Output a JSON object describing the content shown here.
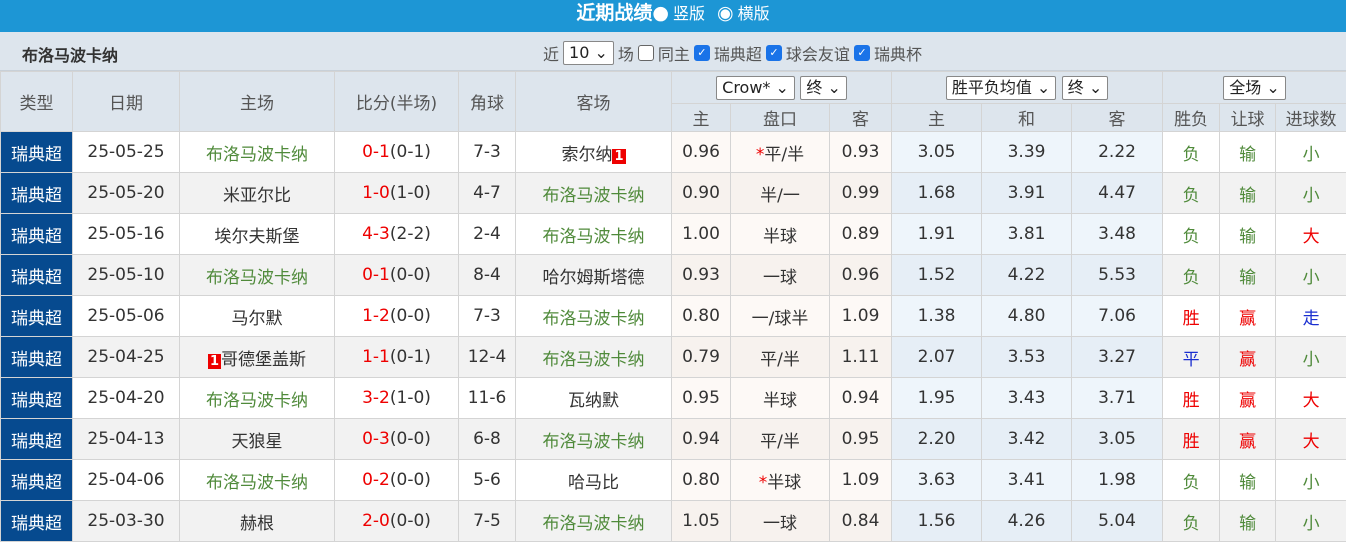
{
  "header": {
    "title": "近期战绩",
    "opt_vertical": "竖版",
    "opt_horizontal": "横版"
  },
  "filter": {
    "team": "布洛马波卡纳",
    "near": "近",
    "count": "10",
    "games": "场",
    "same_home": "同主",
    "leagues": [
      "瑞典超",
      "球会友谊",
      "瑞典杯"
    ]
  },
  "columns": {
    "type": "类型",
    "date": "日期",
    "home": "主场",
    "score": "比分(半场)",
    "corner": "角球",
    "away": "客场",
    "company": "Crow*",
    "handicap_stage": "终",
    "euro_select": "胜平负均值",
    "euro_stage": "终",
    "period": "全场",
    "sub": [
      "主",
      "盘口",
      "客",
      "主",
      "和",
      "客",
      "胜负",
      "让球",
      "进球数"
    ]
  },
  "colors": {
    "team_highlight": "#4f8a3a",
    "league_bg": "#064a8f",
    "win": "#e00000",
    "loss": "#4f8a3a",
    "draw": "#1a2fd0"
  },
  "rows": [
    {
      "league": "瑞典超",
      "date": "25-05-25",
      "home": "布洛马波卡纳",
      "home_card": "",
      "score": "0-1",
      "half": "(0-1)",
      "corner": "7-3",
      "away": "索尔纳",
      "away_card": "1",
      "o1": "0.96",
      "hc_star": "*",
      "hc": "平/半",
      "o2": "0.93",
      "e1": "3.05",
      "e2": "3.39",
      "e3": "2.22",
      "r": "负",
      "rh": "输",
      "ou": "小",
      "hl": "home"
    },
    {
      "league": "瑞典超",
      "date": "25-05-20",
      "home": "米亚尔比",
      "home_card": "",
      "score": "1-0",
      "half": "(1-0)",
      "corner": "4-7",
      "away": "布洛马波卡纳",
      "away_card": "",
      "o1": "0.90",
      "hc_star": "",
      "hc": "半/一",
      "o2": "0.99",
      "e1": "1.68",
      "e2": "3.91",
      "e3": "4.47",
      "r": "负",
      "rh": "输",
      "ou": "小",
      "hl": "away"
    },
    {
      "league": "瑞典超",
      "date": "25-05-16",
      "home": "埃尔夫斯堡",
      "home_card": "",
      "score": "4-3",
      "half": "(2-2)",
      "corner": "2-4",
      "away": "布洛马波卡纳",
      "away_card": "",
      "o1": "1.00",
      "hc_star": "",
      "hc": "半球",
      "o2": "0.89",
      "e1": "1.91",
      "e2": "3.81",
      "e3": "3.48",
      "r": "负",
      "rh": "输",
      "ou": "大",
      "hl": "away"
    },
    {
      "league": "瑞典超",
      "date": "25-05-10",
      "home": "布洛马波卡纳",
      "home_card": "",
      "score": "0-1",
      "half": "(0-0)",
      "corner": "8-4",
      "away": "哈尔姆斯塔德",
      "away_card": "",
      "o1": "0.93",
      "hc_star": "",
      "hc": "一球",
      "o2": "0.96",
      "e1": "1.52",
      "e2": "4.22",
      "e3": "5.53",
      "r": "负",
      "rh": "输",
      "ou": "小",
      "hl": "home"
    },
    {
      "league": "瑞典超",
      "date": "25-05-06",
      "home": "马尔默",
      "home_card": "",
      "score": "1-2",
      "half": "(0-0)",
      "corner": "7-3",
      "away": "布洛马波卡纳",
      "away_card": "",
      "o1": "0.80",
      "hc_star": "",
      "hc": "一/球半",
      "o2": "1.09",
      "e1": "1.38",
      "e2": "4.80",
      "e3": "7.06",
      "r": "胜",
      "rh": "赢",
      "ou": "走",
      "hl": "away"
    },
    {
      "league": "瑞典超",
      "date": "25-04-25",
      "home": "哥德堡盖斯",
      "home_card": "1",
      "score": "1-1",
      "half": "(0-1)",
      "corner": "12-4",
      "away": "布洛马波卡纳",
      "away_card": "",
      "o1": "0.79",
      "hc_star": "",
      "hc": "平/半",
      "o2": "1.11",
      "e1": "2.07",
      "e2": "3.53",
      "e3": "3.27",
      "r": "平",
      "rh": "赢",
      "ou": "小",
      "hl": "away"
    },
    {
      "league": "瑞典超",
      "date": "25-04-20",
      "home": "布洛马波卡纳",
      "home_card": "",
      "score": "3-2",
      "half": "(1-0)",
      "corner": "11-6",
      "away": "瓦纳默",
      "away_card": "",
      "o1": "0.95",
      "hc_star": "",
      "hc": "半球",
      "o2": "0.94",
      "e1": "1.95",
      "e2": "3.43",
      "e3": "3.71",
      "r": "胜",
      "rh": "赢",
      "ou": "大",
      "hl": "home"
    },
    {
      "league": "瑞典超",
      "date": "25-04-13",
      "home": "天狼星",
      "home_card": "",
      "score": "0-3",
      "half": "(0-0)",
      "corner": "6-8",
      "away": "布洛马波卡纳",
      "away_card": "",
      "o1": "0.94",
      "hc_star": "",
      "hc": "平/半",
      "o2": "0.95",
      "e1": "2.20",
      "e2": "3.42",
      "e3": "3.05",
      "r": "胜",
      "rh": "赢",
      "ou": "大",
      "hl": "away"
    },
    {
      "league": "瑞典超",
      "date": "25-04-06",
      "home": "布洛马波卡纳",
      "home_card": "",
      "score": "0-2",
      "half": "(0-0)",
      "corner": "5-6",
      "away": "哈马比",
      "away_card": "",
      "o1": "0.80",
      "hc_star": "*",
      "hc": "半球",
      "o2": "1.09",
      "e1": "3.63",
      "e2": "3.41",
      "e3": "1.98",
      "r": "负",
      "rh": "输",
      "ou": "小",
      "hl": "home"
    },
    {
      "league": "瑞典超",
      "date": "25-03-30",
      "home": "赫根",
      "home_card": "",
      "score": "2-0",
      "half": "(0-0)",
      "corner": "7-5",
      "away": "布洛马波卡纳",
      "away_card": "",
      "o1": "1.05",
      "hc_star": "",
      "hc": "一球",
      "o2": "0.84",
      "e1": "1.56",
      "e2": "4.26",
      "e3": "5.04",
      "r": "负",
      "rh": "输",
      "ou": "小",
      "hl": "away"
    }
  ]
}
